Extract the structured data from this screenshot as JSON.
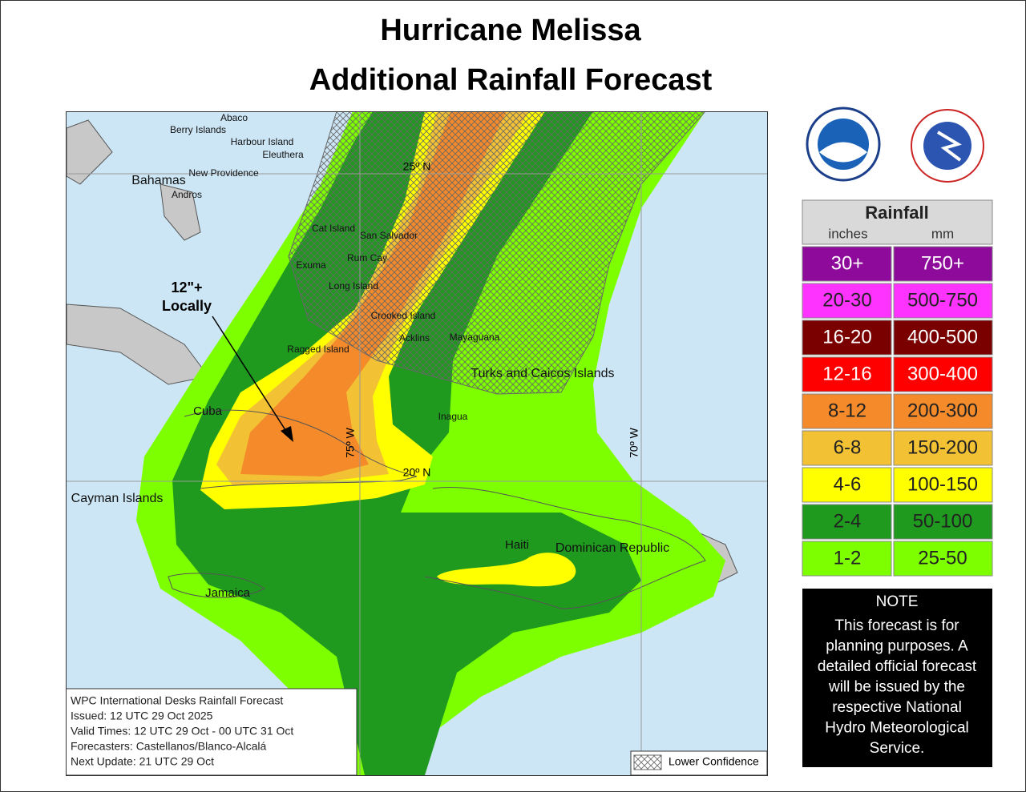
{
  "title": [
    "Hurricane Melissa",
    "Additional Rainfall Forecast"
  ],
  "map": {
    "places": [
      "Abaco",
      "Berry Islands",
      "Harbour Island",
      "Eleuthera",
      "New Providence",
      "Bahamas",
      "Andros",
      "Cat Island",
      "San Salvador",
      "Rum Cay",
      "Exuma",
      "Long Island",
      "Crooked Island",
      "Acklins",
      "Mayaguana",
      "Ragged Island",
      "Turks and Caicos Islands",
      "Cuba",
      "Inagua",
      "Cayman Islands",
      "Haiti",
      "Dominican Republic",
      "Jamaica"
    ],
    "graticule": [
      "25º N",
      "20º N",
      "75º W",
      "70º W"
    ],
    "annotation": [
      "12\"+",
      "Locally"
    ],
    "info": [
      "WPC International Desks Rainfall Forecast",
      "Issued: 12 UTC 29 Oct 2025",
      "Valid Times: 12 UTC 29 Oct - 00 UTC 31 Oct",
      "Forecasters: Castellanos/Blanco-Alcalá",
      "Next Update: 21 UTC 29 Oct"
    ],
    "lower_confidence": "Lower Confidence"
  },
  "legend": {
    "title": "Rainfall",
    "units": [
      "inches",
      "mm"
    ],
    "rows": [
      {
        "inches": "30+",
        "mm": "750+",
        "color": "#8e0a9a"
      },
      {
        "inches": "20-30",
        "mm": "500-750",
        "color": "#ff33ff"
      },
      {
        "inches": "16-20",
        "mm": "400-500",
        "color": "#7a0000"
      },
      {
        "inches": "12-16",
        "mm": "300-400",
        "color": "#ff0000"
      },
      {
        "inches": "8-12",
        "mm": "200-300",
        "color": "#f48a2a"
      },
      {
        "inches": "6-8",
        "mm": "150-200",
        "color": "#f2c234"
      },
      {
        "inches": "4-6",
        "mm": "100-150",
        "color": "#ffff00"
      },
      {
        "inches": "2-4",
        "mm": "50-100",
        "color": "#1f9a1f"
      },
      {
        "inches": "1-2",
        "mm": "25-50",
        "color": "#7dff00"
      }
    ]
  },
  "note": {
    "title": "NOTE",
    "lines": [
      "This forecast is for",
      "planning purposes. A",
      "detailed official forecast",
      "will be issued by the",
      "respective National",
      "Hydro Meteorological",
      "Service."
    ]
  }
}
